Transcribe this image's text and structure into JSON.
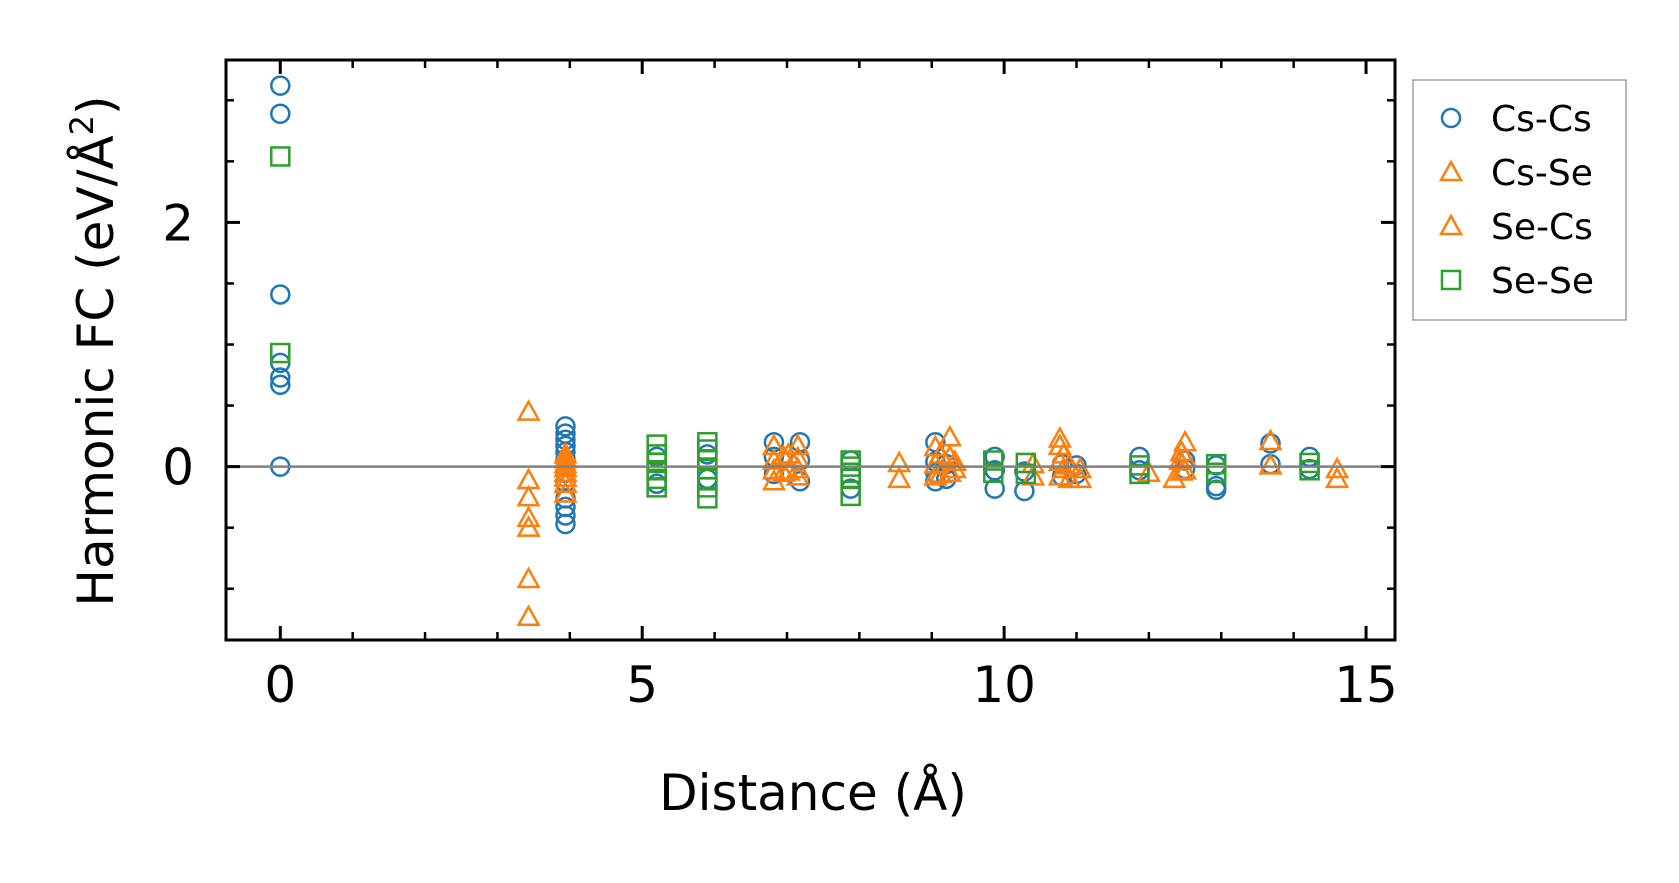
{
  "chart_data": {
    "type": "scatter",
    "title": "",
    "xlabel": "Distance (Å)",
    "ylabel_main": "Harmonic FC (eV/Å",
    "ylabel_sup": "2",
    "ylabel_end": ")",
    "xlim": [
      -0.75,
      15.4
    ],
    "ylim": [
      -1.42,
      3.33
    ],
    "xticks": [
      0,
      5,
      10,
      15
    ],
    "xtick_labels": [
      "0",
      "5",
      "10",
      "15"
    ],
    "x_minor_ticks": [
      1,
      2,
      3,
      4,
      6,
      7,
      8,
      9,
      11,
      12,
      13,
      14
    ],
    "yticks": [
      0,
      2
    ],
    "ytick_labels": [
      "0",
      "2"
    ],
    "y_minor_ticks": [
      -1.0,
      -0.5,
      0.5,
      1.0,
      1.5,
      2.5,
      3.0
    ],
    "hline": 0,
    "grid": false,
    "legend_position": "outside-right-top",
    "series": [
      {
        "name": "Cs-Cs",
        "marker": "circle",
        "color": "#1f77b4",
        "points": [
          [
            0,
            3.12
          ],
          [
            0,
            2.89
          ],
          [
            0,
            1.41
          ],
          [
            0,
            0.85
          ],
          [
            0,
            0.73
          ],
          [
            0,
            0.67
          ],
          [
            0,
            0.0
          ],
          [
            3.94,
            0.33
          ],
          [
            3.94,
            0.27
          ],
          [
            3.94,
            0.22
          ],
          [
            3.94,
            0.17
          ],
          [
            3.94,
            0.12
          ],
          [
            3.94,
            0.06
          ],
          [
            3.94,
            -0.05
          ],
          [
            3.94,
            -0.13
          ],
          [
            3.94,
            -0.26
          ],
          [
            3.94,
            -0.33
          ],
          [
            3.94,
            -0.4
          ],
          [
            3.94,
            -0.47
          ],
          [
            5.2,
            0.08
          ],
          [
            5.2,
            -0.14
          ],
          [
            5.9,
            0.1
          ],
          [
            5.9,
            -0.1
          ],
          [
            6.82,
            0.2
          ],
          [
            6.82,
            0.08
          ],
          [
            6.82,
            -0.06
          ],
          [
            7.18,
            0.2
          ],
          [
            7.18,
            0.05
          ],
          [
            7.18,
            -0.12
          ],
          [
            7.88,
            0.05
          ],
          [
            7.88,
            -0.18
          ],
          [
            9.05,
            0.2
          ],
          [
            9.05,
            0.04
          ],
          [
            9.05,
            -0.05
          ],
          [
            9.05,
            -0.12
          ],
          [
            9.2,
            0.02
          ],
          [
            9.2,
            -0.1
          ],
          [
            9.87,
            0.08
          ],
          [
            9.87,
            -0.03
          ],
          [
            9.87,
            -0.18
          ],
          [
            10.28,
            -0.04
          ],
          [
            10.28,
            -0.2
          ],
          [
            10.8,
            0.02
          ],
          [
            10.8,
            -0.08
          ],
          [
            11.0,
            0.01
          ],
          [
            11.0,
            -0.06
          ],
          [
            11.87,
            0.08
          ],
          [
            11.87,
            -0.03
          ],
          [
            12.5,
            0.05
          ],
          [
            12.5,
            -0.02
          ],
          [
            12.93,
            0.01
          ],
          [
            12.93,
            -0.16
          ],
          [
            12.93,
            -0.19
          ],
          [
            13.68,
            0.19
          ],
          [
            13.68,
            0.02
          ],
          [
            14.22,
            0.08
          ],
          [
            14.22,
            -0.02
          ]
        ]
      },
      {
        "name": "Cs-Se",
        "marker": "triangle",
        "color": "#ff7f0e",
        "points": [
          [
            3.43,
            0.45
          ],
          [
            3.43,
            -0.11
          ],
          [
            3.43,
            -0.25
          ],
          [
            3.43,
            -0.42
          ],
          [
            3.43,
            -0.5
          ],
          [
            3.43,
            -0.92
          ],
          [
            3.43,
            -1.23
          ],
          [
            3.94,
            0.1
          ],
          [
            3.94,
            0.02
          ],
          [
            3.94,
            -0.05
          ],
          [
            3.94,
            -0.14
          ],
          [
            3.94,
            -0.22
          ],
          [
            6.82,
            0.17
          ],
          [
            6.82,
            0.05
          ],
          [
            6.82,
            -0.03
          ],
          [
            6.82,
            -0.12
          ],
          [
            6.95,
            0.08
          ],
          [
            6.95,
            -0.05
          ],
          [
            7.15,
            0.17
          ],
          [
            7.15,
            0.07
          ],
          [
            7.15,
            -0.02
          ],
          [
            7.15,
            -0.08
          ],
          [
            8.55,
            0.03
          ],
          [
            8.55,
            -0.1
          ],
          [
            9.05,
            0.16
          ],
          [
            9.05,
            0.02
          ],
          [
            9.05,
            -0.08
          ],
          [
            9.25,
            0.24
          ],
          [
            9.25,
            0.08
          ],
          [
            9.25,
            -0.05
          ],
          [
            10.4,
            0.02
          ],
          [
            10.4,
            -0.08
          ],
          [
            10.77,
            0.23
          ],
          [
            10.77,
            0.17
          ],
          [
            10.77,
            0.04
          ],
          [
            10.77,
            -0.08
          ],
          [
            10.9,
            0.01
          ],
          [
            10.9,
            -0.1
          ],
          [
            11.05,
            -0.02
          ],
          [
            11.05,
            -0.1
          ],
          [
            12.0,
            -0.05
          ],
          [
            12.35,
            -0.1
          ],
          [
            12.43,
            0.05
          ],
          [
            12.5,
            0.2
          ],
          [
            12.5,
            0.07
          ],
          [
            12.5,
            -0.03
          ],
          [
            13.68,
            0.21
          ],
          [
            13.68,
            0.01
          ],
          [
            14.6,
            -0.02
          ],
          [
            14.6,
            -0.1
          ]
        ]
      },
      {
        "name": "Se-Cs",
        "marker": "triangle",
        "color": "#ff7f0e",
        "points": [
          [
            3.94,
            0.06
          ],
          [
            3.94,
            -0.01
          ],
          [
            3.94,
            -0.09
          ],
          [
            7.02,
            0.1
          ],
          [
            7.02,
            -0.04
          ],
          [
            9.12,
            0.1
          ],
          [
            9.12,
            -0.06
          ],
          [
            9.32,
            0.04
          ],
          [
            9.32,
            -0.02
          ],
          [
            10.82,
            0.1
          ],
          [
            10.82,
            -0.02
          ],
          [
            12.45,
            0.12
          ],
          [
            12.45,
            -0.04
          ]
        ]
      },
      {
        "name": "Se-Se",
        "marker": "square",
        "color": "#2ca02c",
        "points": [
          [
            0,
            2.54
          ],
          [
            0,
            0.93
          ],
          [
            5.2,
            0.18
          ],
          [
            5.2,
            0.1
          ],
          [
            5.2,
            0.03
          ],
          [
            5.2,
            -0.03
          ],
          [
            5.2,
            -0.1
          ],
          [
            5.2,
            -0.17
          ],
          [
            5.9,
            0.2
          ],
          [
            5.9,
            0.14
          ],
          [
            5.9,
            0.06
          ],
          [
            5.9,
            -0.02
          ],
          [
            5.9,
            -0.1
          ],
          [
            5.9,
            -0.17
          ],
          [
            5.9,
            -0.26
          ],
          [
            7.88,
            0.05
          ],
          [
            7.88,
            0.0
          ],
          [
            7.88,
            -0.05
          ],
          [
            7.88,
            -0.1
          ],
          [
            7.88,
            -0.24
          ],
          [
            9.85,
            0.05
          ],
          [
            9.85,
            -0.05
          ],
          [
            10.3,
            0.03
          ],
          [
            10.3,
            -0.06
          ],
          [
            11.87,
            0.01
          ],
          [
            11.87,
            -0.06
          ],
          [
            12.93,
            0.02
          ],
          [
            12.93,
            -0.05
          ],
          [
            14.22,
            0.03
          ],
          [
            14.22,
            -0.03
          ]
        ]
      }
    ]
  }
}
